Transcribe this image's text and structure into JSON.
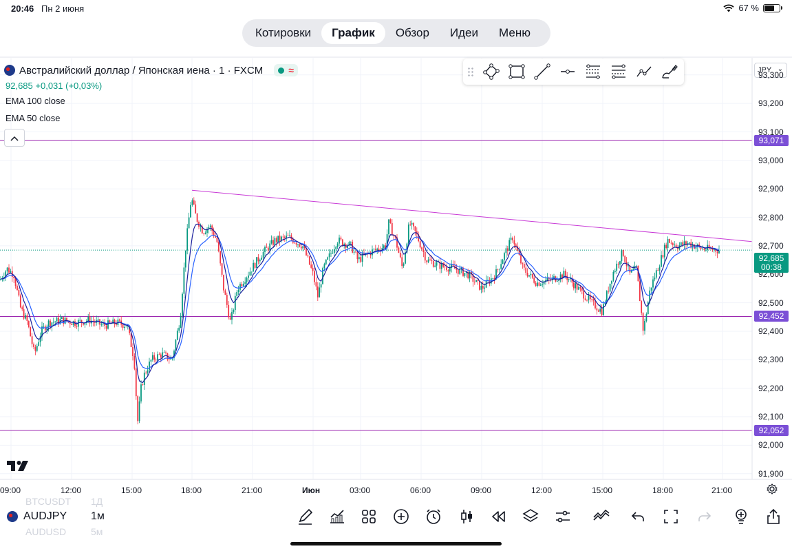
{
  "status_bar": {
    "time": "20:46",
    "date": "Пн 2 июня",
    "battery": "67 %",
    "battery_level": 0.67
  },
  "nav": {
    "tabs": [
      {
        "label": "Котировки",
        "active": false
      },
      {
        "label": "График",
        "active": true
      },
      {
        "label": "Обзор",
        "active": false
      },
      {
        "label": "Идеи",
        "active": false
      },
      {
        "label": "Меню",
        "active": false
      }
    ]
  },
  "legend": {
    "title": "Австралийский доллар / Японская иена · 1 · FXCM",
    "status_glyph": "≈",
    "last_price": "92,685",
    "change": "+0,031",
    "change_pct": "(+0,03%)",
    "indicators": [
      "EMA 100 close",
      "EMA 50 close"
    ],
    "collapse_glyph": "^"
  },
  "drawing_tools": [
    "grip-icon",
    "polygon-pen-icon",
    "rectangle-icon",
    "trend-line-icon",
    "horizontal-ray-icon",
    "fib-retracement-icon",
    "gann-fan-icon",
    "polyline-icon",
    "brush-icon"
  ],
  "price_scale": {
    "currency": "JPY",
    "ticks": [
      "93,300",
      "93,200",
      "93,100",
      "93,000",
      "92,900",
      "92,800",
      "92,700",
      "92,600",
      "92,500",
      "92,400",
      "92,300",
      "92,200",
      "92,100",
      "92,000",
      "91,900"
    ],
    "tags": [
      {
        "value": "93,071",
        "color": "#7b4fd6"
      },
      {
        "value": "92,452",
        "color": "#7b4fd6"
      },
      {
        "value": "92,052",
        "color": "#7b4fd6"
      }
    ],
    "current": {
      "value": "92,685",
      "countdown": "00:38",
      "color": "#089981"
    }
  },
  "time_axis": {
    "labels": [
      "09:00",
      "12:00",
      "15:00",
      "18:00",
      "21:00",
      "Июн",
      "03:00",
      "06:00",
      "09:00",
      "12:00",
      "15:00",
      "18:00",
      "21:00"
    ]
  },
  "chart_data": {
    "type": "candlestick",
    "symbol": "AUDJPY",
    "interval": "1м",
    "ylim": [
      91.88,
      93.36
    ],
    "horizontal_lines": [
      93.071,
      92.452,
      92.052
    ],
    "last_price_line": 92.685,
    "trend_line": [
      {
        "x_label": "18:00",
        "y": 92.895
      },
      {
        "x_label": "21:00+",
        "y": 92.715
      }
    ],
    "price_path": [
      [
        0,
        92.58
      ],
      [
        10,
        92.62
      ],
      [
        20,
        92.6
      ],
      [
        30,
        92.48
      ],
      [
        40,
        92.43
      ],
      [
        50,
        92.32
      ],
      [
        60,
        92.4
      ],
      [
        70,
        92.43
      ],
      [
        90,
        92.44
      ],
      [
        110,
        92.43
      ],
      [
        130,
        92.44
      ],
      [
        150,
        92.42
      ],
      [
        170,
        92.43
      ],
      [
        185,
        92.42
      ],
      [
        195,
        92.3
      ],
      [
        200,
        92.08
      ],
      [
        205,
        92.2
      ],
      [
        210,
        92.25
      ],
      [
        220,
        92.3
      ],
      [
        235,
        92.32
      ],
      [
        250,
        92.3
      ],
      [
        262,
        92.45
      ],
      [
        270,
        92.7
      ],
      [
        278,
        92.87
      ],
      [
        285,
        92.8
      ],
      [
        295,
        92.75
      ],
      [
        305,
        92.77
      ],
      [
        315,
        92.72
      ],
      [
        325,
        92.55
      ],
      [
        335,
        92.43
      ],
      [
        345,
        92.55
      ],
      [
        360,
        92.6
      ],
      [
        380,
        92.67
      ],
      [
        400,
        92.72
      ],
      [
        420,
        92.73
      ],
      [
        440,
        92.7
      ],
      [
        455,
        92.6
      ],
      [
        462,
        92.52
      ],
      [
        470,
        92.62
      ],
      [
        490,
        92.72
      ],
      [
        510,
        92.7
      ],
      [
        520,
        92.65
      ],
      [
        540,
        92.68
      ],
      [
        560,
        92.7
      ],
      [
        565,
        92.78
      ],
      [
        575,
        92.72
      ],
      [
        585,
        92.62
      ],
      [
        595,
        92.78
      ],
      [
        605,
        92.74
      ],
      [
        620,
        92.65
      ],
      [
        640,
        92.63
      ],
      [
        660,
        92.62
      ],
      [
        680,
        92.6
      ],
      [
        700,
        92.55
      ],
      [
        720,
        92.6
      ],
      [
        735,
        92.68
      ],
      [
        745,
        92.73
      ],
      [
        760,
        92.62
      ],
      [
        780,
        92.57
      ],
      [
        800,
        92.58
      ],
      [
        820,
        92.6
      ],
      [
        840,
        92.55
      ],
      [
        860,
        92.5
      ],
      [
        875,
        92.47
      ],
      [
        890,
        92.6
      ],
      [
        905,
        92.68
      ],
      [
        915,
        92.6
      ],
      [
        925,
        92.62
      ],
      [
        935,
        92.4
      ],
      [
        945,
        92.55
      ],
      [
        960,
        92.65
      ],
      [
        970,
        92.72
      ],
      [
        985,
        92.7
      ],
      [
        1000,
        92.71
      ],
      [
        1020,
        92.69
      ],
      [
        1045,
        92.685
      ]
    ],
    "series": [
      {
        "name": "EMA 100 close",
        "color": "#2962ff"
      },
      {
        "name": "EMA 50 close",
        "color": "#1a1f9c"
      }
    ]
  },
  "bottom_bar": {
    "ghost_top": "BTCUSDT",
    "ghost_top_interval": "1Д",
    "symbol": "AUDJPY",
    "interval": "1м",
    "ghost_bottom": "AUDUSD",
    "ghost_bottom_interval": "5м",
    "tools": [
      "pen-icon",
      "indicators-icon",
      "layouts-icon",
      "plus-circle-icon",
      "alarm-icon",
      "candles-icon",
      "replay-icon",
      "layers-icon",
      "settings-sliders-icon",
      "trend-icon",
      "undo-icon",
      "fullscreen-icon",
      "redo-icon",
      "idea-icon",
      "share-icon"
    ]
  }
}
